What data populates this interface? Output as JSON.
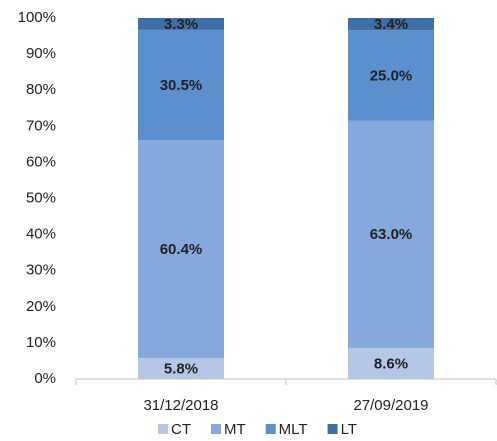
{
  "chart_data": {
    "type": "stacked_bar",
    "categories": [
      "31/12/2018",
      "27/09/2019"
    ],
    "series": [
      {
        "name": "CT",
        "color": "#b4c7e7",
        "values": [
          5.8,
          8.6
        ],
        "value_labels": [
          "5.8%",
          "8.6%"
        ]
      },
      {
        "name": "MT",
        "color": "#85a9dc",
        "values": [
          60.4,
          63.0
        ],
        "value_labels": [
          "60.4%",
          "63.0%"
        ]
      },
      {
        "name": "MLT",
        "color": "#5b8fcd",
        "values": [
          30.5,
          25.0
        ],
        "value_labels": [
          "30.5%",
          "25.0%"
        ]
      },
      {
        "name": "LT",
        "color": "#3f6fa9",
        "values": [
          3.3,
          3.4
        ],
        "value_labels": [
          "3.3%",
          "3.4%"
        ]
      }
    ],
    "ylim": [
      0,
      100
    ],
    "yticks": [
      {
        "value": 0,
        "label": "0%"
      },
      {
        "value": 10,
        "label": "10%"
      },
      {
        "value": 20,
        "label": "20%"
      },
      {
        "value": 30,
        "label": "30%"
      },
      {
        "value": 40,
        "label": "40%"
      },
      {
        "value": 50,
        "label": "50%"
      },
      {
        "value": 60,
        "label": "60%"
      },
      {
        "value": 70,
        "label": "70%"
      },
      {
        "value": 80,
        "label": "80%"
      },
      {
        "value": 90,
        "label": "90%"
      },
      {
        "value": 100,
        "label": "100%"
      }
    ],
    "grid": false,
    "legend": "bottom"
  }
}
